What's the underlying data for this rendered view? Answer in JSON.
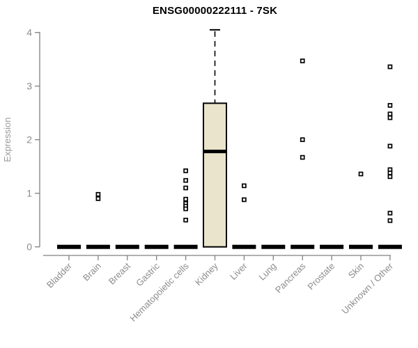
{
  "chart_data": {
    "type": "boxplot",
    "title": "ENSG00000222111 - 7SK",
    "xlabel": "",
    "ylabel": "Expression",
    "ylim": [
      0,
      4
    ],
    "yticks": [
      "0",
      "1",
      "2",
      "3",
      "4"
    ],
    "grid": false,
    "legend": "none",
    "categories": [
      "Bladder",
      "Brain",
      "Breast",
      "Gastric",
      "Hematopoietic cells",
      "Kidney",
      "Liver",
      "Lung",
      "Pancreas",
      "Prostate",
      "Skin",
      "Unknown / Other"
    ],
    "series": [
      {
        "name": "Bladder",
        "q1": 0,
        "median": 0,
        "q3": 0,
        "whisker_low": 0,
        "whisker_high": 0,
        "outliers": []
      },
      {
        "name": "Brain",
        "q1": 0,
        "median": 0,
        "q3": 0,
        "whisker_low": 0,
        "whisker_high": 0,
        "outliers": [
          0.98,
          0.9
        ]
      },
      {
        "name": "Breast",
        "q1": 0,
        "median": 0,
        "q3": 0,
        "whisker_low": 0,
        "whisker_high": 0,
        "outliers": []
      },
      {
        "name": "Gastric",
        "q1": 0,
        "median": 0,
        "q3": 0,
        "whisker_low": 0,
        "whisker_high": 0,
        "outliers": []
      },
      {
        "name": "Hematopoietic cells",
        "q1": 0,
        "median": 0,
        "q3": 0,
        "whisker_low": 0,
        "whisker_high": 0,
        "outliers": [
          1.42,
          1.24,
          1.1,
          0.89,
          0.81,
          0.76,
          0.71,
          0.5
        ]
      },
      {
        "name": "Kidney",
        "q1": 0,
        "median": 1.78,
        "q3": 2.68,
        "whisker_low": 0,
        "whisker_high": 4.05,
        "outliers": []
      },
      {
        "name": "Liver",
        "q1": 0,
        "median": 0,
        "q3": 0,
        "whisker_low": 0,
        "whisker_high": 0,
        "outliers": [
          1.14,
          0.88
        ]
      },
      {
        "name": "Lung",
        "q1": 0,
        "median": 0,
        "q3": 0,
        "whisker_low": 0,
        "whisker_high": 0,
        "outliers": []
      },
      {
        "name": "Pancreas",
        "q1": 0,
        "median": 0,
        "q3": 0,
        "whisker_low": 0,
        "whisker_high": 0,
        "outliers": [
          3.47,
          2.0,
          1.67
        ]
      },
      {
        "name": "Prostate",
        "q1": 0,
        "median": 0,
        "q3": 0,
        "whisker_low": 0,
        "whisker_high": 0,
        "outliers": []
      },
      {
        "name": "Skin",
        "q1": 0,
        "median": 0,
        "q3": 0,
        "whisker_low": 0,
        "whisker_high": 0,
        "outliers": [
          1.36
        ]
      },
      {
        "name": "Unknown / Other",
        "q1": 0,
        "median": 0,
        "q3": 0,
        "whisker_low": 0,
        "whisker_high": 0,
        "outliers": [
          3.36,
          2.64,
          2.48,
          2.41,
          1.88,
          1.44,
          1.38,
          1.31,
          0.63,
          0.49
        ]
      }
    ],
    "colors": {
      "box_fill": "#E9E4CB",
      "box_border": "#000000",
      "median": "#000000",
      "zero_bar": "#000000",
      "axis": "#808080",
      "tick_label": "#8C8C8C",
      "axis_title": "#9A9A9A",
      "title": "#000000",
      "background": "#FFFFFF"
    }
  }
}
